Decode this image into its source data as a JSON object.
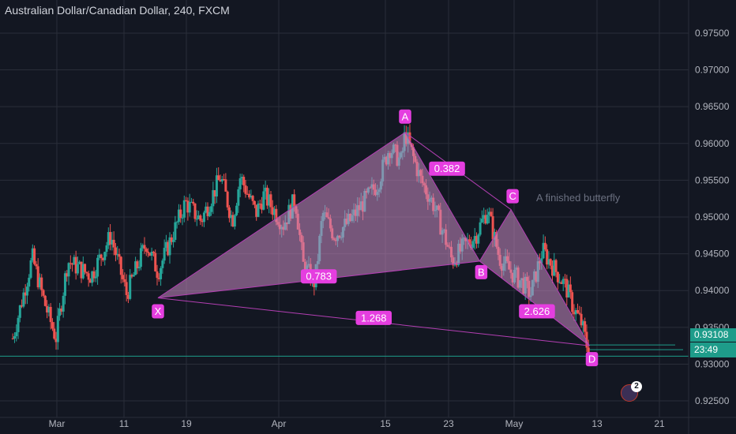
{
  "title": "Australian Dollar/Canadian Dollar, 240, FXCM",
  "annotation_text": "A finished butterfly",
  "current_price": "0.93108",
  "bar_timer": "23:49",
  "notification_count": "2",
  "colors": {
    "background": "#131722",
    "up_candle": "#26a69a",
    "down_candle": "#ef5350",
    "pattern_line": "#b33fb3",
    "pattern_fill": "#c88bc2",
    "label_bg": "#e53ee0",
    "price_line": "#1e9c8a"
  },
  "chart_data": {
    "type": "candlestick",
    "title": "Australian Dollar/Canadian Dollar, 240, FXCM",
    "x_tick_labels": [
      "Mar",
      "11",
      "19",
      "Apr",
      "15",
      "23",
      "May",
      "13",
      "21"
    ],
    "y_ticks": [
      0.925,
      0.93,
      0.935,
      0.94,
      0.945,
      0.95,
      0.955,
      0.96,
      0.965,
      0.97,
      0.975
    ],
    "y_tick_labels": [
      "0.92500",
      "0.93000",
      "0.93500",
      "0.94000",
      "0.94500",
      "0.95000",
      "0.95500",
      "0.96000",
      "0.96500",
      "0.97000",
      "0.97500"
    ],
    "ylim": [
      0.9205,
      0.9795
    ],
    "last_price": 0.93108,
    "grid": true,
    "price_path": [
      [
        0.0,
        0.9335
      ],
      [
        0.05,
        0.9445
      ],
      [
        0.08,
        0.9385
      ],
      [
        0.11,
        0.9335
      ],
      [
        0.14,
        0.944
      ],
      [
        0.2,
        0.942
      ],
      [
        0.25,
        0.9475
      ],
      [
        0.29,
        0.9395
      ],
      [
        0.34,
        0.9465
      ],
      [
        0.37,
        0.9425
      ],
      [
        0.44,
        0.952
      ],
      [
        0.48,
        0.9495
      ],
      [
        0.53,
        0.9555
      ],
      [
        0.56,
        0.9495
      ],
      [
        0.58,
        0.9555
      ],
      [
        0.62,
        0.9505
      ],
      [
        0.64,
        0.953
      ],
      [
        0.69,
        0.949
      ],
      [
        0.72,
        0.9525
      ],
      [
        0.74,
        0.9435
      ],
      [
        0.77,
        0.941
      ],
      [
        0.79,
        0.9505
      ],
      [
        0.82,
        0.9475
      ],
      [
        0.86,
        0.9495
      ],
      [
        0.88,
        0.951
      ],
      [
        0.93,
        0.9545
      ],
      [
        0.96,
        0.9595
      ],
      [
        0.99,
        0.9575
      ],
      [
        1.0,
        0.9615
      ],
      [
        1.04,
        0.955
      ],
      [
        1.07,
        0.952
      ],
      [
        1.1,
        0.9475
      ],
      [
        1.12,
        0.944
      ],
      [
        1.15,
        0.946
      ],
      [
        1.18,
        0.9475
      ],
      [
        1.21,
        0.951
      ],
      [
        1.24,
        0.9445
      ],
      [
        1.27,
        0.9425
      ],
      [
        1.3,
        0.941
      ],
      [
        1.32,
        0.9395
      ],
      [
        1.35,
        0.9455
      ],
      [
        1.38,
        0.943
      ],
      [
        1.41,
        0.9405
      ],
      [
        1.43,
        0.9375
      ],
      [
        1.45,
        0.9355
      ],
      [
        1.47,
        0.931
      ]
    ],
    "harmonic_pattern": {
      "points": [
        {
          "label": "X",
          "t": 0.37,
          "price": 0.939
        },
        {
          "label": "A",
          "t": 1.0,
          "price": 0.9615
        },
        {
          "label": "B",
          "t": 1.19,
          "price": 0.944
        },
        {
          "label": "C",
          "t": 1.27,
          "price": 0.951
        },
        {
          "label": "D",
          "t": 1.47,
          "price": 0.9325
        }
      ],
      "ratios": [
        {
          "label": "0.783",
          "between": "XB"
        },
        {
          "label": "0.382",
          "between": "AC"
        },
        {
          "label": "2.626",
          "between": "BD"
        },
        {
          "label": "1.268",
          "between": "XD"
        }
      ]
    }
  }
}
